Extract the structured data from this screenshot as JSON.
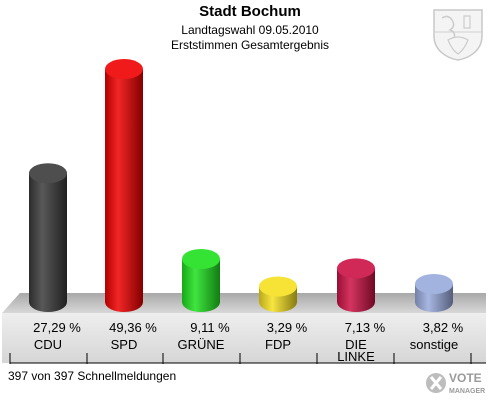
{
  "header": {
    "title": "Stadt Bochum",
    "subtitle": "Landtagswahl 09.05.2010",
    "subtitle2": "Erststimmen Gesamtergebnis"
  },
  "footer": {
    "status": "397 von 397 Schnellmeldungen"
  },
  "logo": {
    "line1": "VOTE",
    "line2": "MANAGER"
  },
  "chart_data": {
    "type": "bar",
    "title": "Stadt Bochum",
    "subtitle": "Landtagswahl 09.05.2010 · Erststimmen Gesamtergebnis",
    "categories": [
      "CDU",
      "SPD",
      "GRÜNE",
      "FDP",
      "DIE LINKE",
      "sonstige"
    ],
    "category_lines": [
      [
        "CDU"
      ],
      [
        "SPD"
      ],
      [
        "GRÜNE"
      ],
      [
        "FDP"
      ],
      [
        "DIE",
        "LINKE"
      ],
      [
        "sonstige"
      ]
    ],
    "values": [
      27.29,
      49.36,
      9.11,
      3.29,
      7.13,
      3.82
    ],
    "value_labels": [
      "27,29 %",
      "49,36 %",
      "9,11 %",
      "3,29 %",
      "7,13 %",
      "3,82 %"
    ],
    "colors": [
      "#3a3a3a",
      "#ee0000",
      "#1ee01e",
      "#f5e020",
      "#cc1144",
      "#99aadd"
    ],
    "ylim": [
      0,
      50
    ],
    "grid": false,
    "legend": "none",
    "xlabel": "",
    "ylabel": ""
  }
}
